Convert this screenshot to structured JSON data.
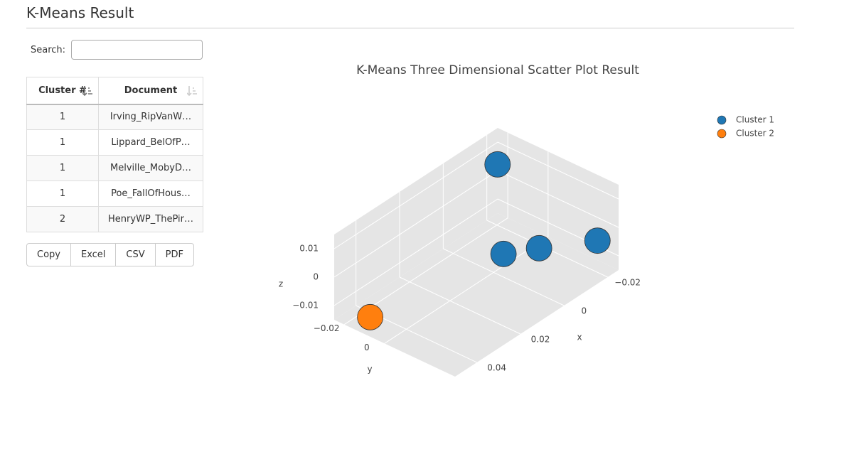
{
  "header": {
    "title": "K-Means Result"
  },
  "search": {
    "label": "Search:"
  },
  "table": {
    "columns": [
      "Cluster #",
      "Document"
    ],
    "rows": [
      [
        1,
        "Irving_RipVanW…"
      ],
      [
        1,
        "Lippard_BelOfP…"
      ],
      [
        1,
        "Melville_MobyD…"
      ],
      [
        1,
        "Poe_FallOfHous…"
      ],
      [
        2,
        "HenryWP_ThePir…"
      ]
    ]
  },
  "buttons": [
    "Copy",
    "Excel",
    "CSV",
    "PDF"
  ],
  "chart_data": {
    "type": "scatter3d",
    "title": "K-Means Three Dimensional Scatter Plot Result",
    "series": [
      {
        "name": "Cluster 1",
        "color": "#1f77b4",
        "x": [
          -0.024,
          0.001,
          -0.007,
          -0.019
        ],
        "y": [
          -0.024,
          0.006,
          0.015,
          0.031
        ],
        "z": [
          0.003,
          -0.006,
          -0.005,
          -0.003
        ]
      },
      {
        "name": "Cluster 2",
        "color": "#ff7f0e",
        "x": [
          0.0455
        ],
        "y": [
          -0.012
        ],
        "z": [
          -0.012
        ]
      }
    ],
    "xlabel": "x",
    "ylabel": "y",
    "zlabel": "z",
    "xlim": [
      -0.025,
      0.05
    ],
    "ylim": [
      -0.025,
      0.035
    ],
    "zlim": [
      -0.015,
      0.015
    ],
    "xticks": [
      {
        "value": -0.02,
        "label": "−0.02"
      },
      0,
      0.02,
      0.04
    ],
    "yticks": [
      {
        "value": -0.02,
        "label": "−0.02"
      },
      0
    ],
    "zticks": [
      {
        "value": -0.01,
        "label": "−0.01"
      },
      0,
      0.01
    ],
    "grid": true,
    "legend": "top-right"
  }
}
